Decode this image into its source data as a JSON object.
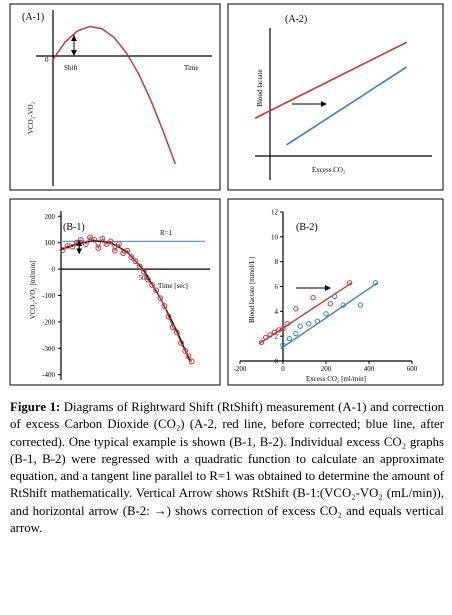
{
  "colors": {
    "red": "#c0393b",
    "blue": "#3b7dc0",
    "refline": "#5b9bd5",
    "black": "#000000"
  },
  "chart_data": [
    {
      "id": "A-1",
      "type": "line",
      "panel_label": "(A-1)",
      "ylabel": "VCO₂-VO₂",
      "xlabel": "Time",
      "y_zero_label": "0",
      "arrow_label": "Shift",
      "series": [
        {
          "color": "red",
          "x": [
            0,
            0.1,
            0.2,
            0.3,
            0.4,
            0.5,
            0.6,
            0.7,
            0.8,
            0.9,
            1.0
          ],
          "y": [
            0.3,
            0.62,
            0.82,
            0.9,
            0.86,
            0.7,
            0.42,
            0.04,
            -0.44,
            -1.0,
            -1.6
          ]
        }
      ],
      "xlim": [
        0,
        1.3
      ],
      "ylim": [
        -2,
        1.2
      ]
    },
    {
      "id": "A-2",
      "type": "line",
      "panel_label": "(A-2)",
      "ylabel": "Blood lactate",
      "xlabel": "Excess CO₂",
      "series": [
        {
          "color": "red",
          "x": [
            -0.2,
            1.0
          ],
          "y": [
            0.3,
            1.1
          ]
        },
        {
          "color": "blue",
          "x": [
            0.05,
            1.0
          ],
          "y": [
            0.02,
            0.84
          ]
        }
      ],
      "xlim": [
        -0.2,
        1.2
      ],
      "ylim": [
        -0.35,
        1.25
      ]
    },
    {
      "id": "B-1",
      "type": "scatter",
      "panel_label": "(B-1)",
      "ylabel": "VCO₂-VO₂ [ml/min]",
      "xlabel": "Time [sec]",
      "reference_line": {
        "label": "R=1",
        "y": 105
      },
      "xticks": [
        {
          "value": 500,
          "label": "500"
        }
      ],
      "yticks": [
        {
          "value": 200,
          "label": "200"
        },
        {
          "value": 100,
          "label": "100"
        },
        {
          "value": 0,
          "label": "0"
        },
        {
          "value": -100,
          "label": "-100"
        },
        {
          "value": -200,
          "label": "-200"
        },
        {
          "value": -300,
          "label": "-300"
        },
        {
          "value": -400,
          "label": "-400"
        }
      ],
      "xlim": [
        0,
        900
      ],
      "ylim": [
        -420,
        220
      ],
      "fit": {
        "x": [
          0,
          100,
          200,
          300,
          400,
          500,
          600,
          700,
          780
        ],
        "y": [
          75,
          95,
          108,
          100,
          65,
          -5,
          -110,
          -235,
          -350
        ]
      },
      "points_x": [
        10,
        40,
        70,
        95,
        120,
        150,
        175,
        200,
        225,
        250,
        275,
        300,
        325,
        350,
        375,
        400,
        425,
        450,
        475,
        500,
        525,
        550,
        575,
        600,
        625,
        650,
        675,
        700,
        725,
        750,
        770,
        790
      ],
      "points_y": [
        72,
        88,
        85,
        100,
        110,
        95,
        120,
        112,
        80,
        115,
        95,
        105,
        70,
        95,
        60,
        70,
        45,
        30,
        10,
        -10,
        -40,
        -60,
        -80,
        -110,
        -140,
        -180,
        -220,
        -240,
        -280,
        -310,
        -330,
        -350
      ]
    },
    {
      "id": "B-2",
      "type": "scatter",
      "panel_label": "(B-2)",
      "ylabel": "Blood lactate [mmol/L]",
      "xlabel": "Excess CO₂ [ml/min]",
      "xticks": [
        {
          "value": -200,
          "label": "-200"
        },
        {
          "value": 0,
          "label": "0"
        },
        {
          "value": 200,
          "label": "200"
        },
        {
          "value": 400,
          "label": "400"
        },
        {
          "value": 600,
          "label": "600"
        }
      ],
      "yticks": [
        {
          "value": 12,
          "label": "12"
        },
        {
          "value": 10,
          "label": "10"
        },
        {
          "value": 8,
          "label": "8"
        },
        {
          "value": 6,
          "label": "6"
        },
        {
          "value": 4,
          "label": "4"
        },
        {
          "value": 2,
          "label": "2"
        },
        {
          "value": 0,
          "label": "0"
        }
      ],
      "xlim": [
        -200,
        600
      ],
      "ylim": [
        0,
        12
      ],
      "series": [
        {
          "color": "red",
          "points_x": [
            -100,
            -80,
            -60,
            -40,
            -20,
            0,
            20,
            60,
            140,
            220,
            310
          ],
          "points_y": [
            1.5,
            1.9,
            2.1,
            2.3,
            2.5,
            2.6,
            3.0,
            4.2,
            5.1,
            4.6,
            6.3
          ],
          "line_x": [
            -110,
            320
          ],
          "line_y": [
            1.4,
            6.3
          ]
        },
        {
          "color": "blue",
          "points_x": [
            0,
            30,
            60,
            80,
            120,
            160,
            200,
            240,
            280,
            360,
            430
          ],
          "points_y": [
            1.3,
            1.8,
            2.2,
            2.8,
            3.0,
            3.2,
            3.8,
            5.2,
            4.5,
            4.5,
            6.3
          ],
          "line_x": [
            -10,
            440
          ],
          "line_y": [
            1.0,
            6.3
          ]
        }
      ]
    }
  ],
  "caption": {
    "title": "Figure 1:",
    "text": " Diagrams of Rightward Shift (RtShift) measurement (A-1) and correction of excess Carbon Dioxide (CO₂) (A-2, red line, before corrected; blue line, after corrected). One typical example is shown (B-1, B-2). Individual excess CO₂ graphs (B-1, B-2) were regressed with a quadratic function to calculate an approximate equation, and a tangent line parallel to R=1 was obtained to determine the amount of RtShift mathematically. Vertical Arrow shows RtShift (B-1:(VCO₂-VO₂ (mL/min)), and horizontal arrow (B-2: →) shows correction of excess CO₂ and equals vertical arrow."
  }
}
